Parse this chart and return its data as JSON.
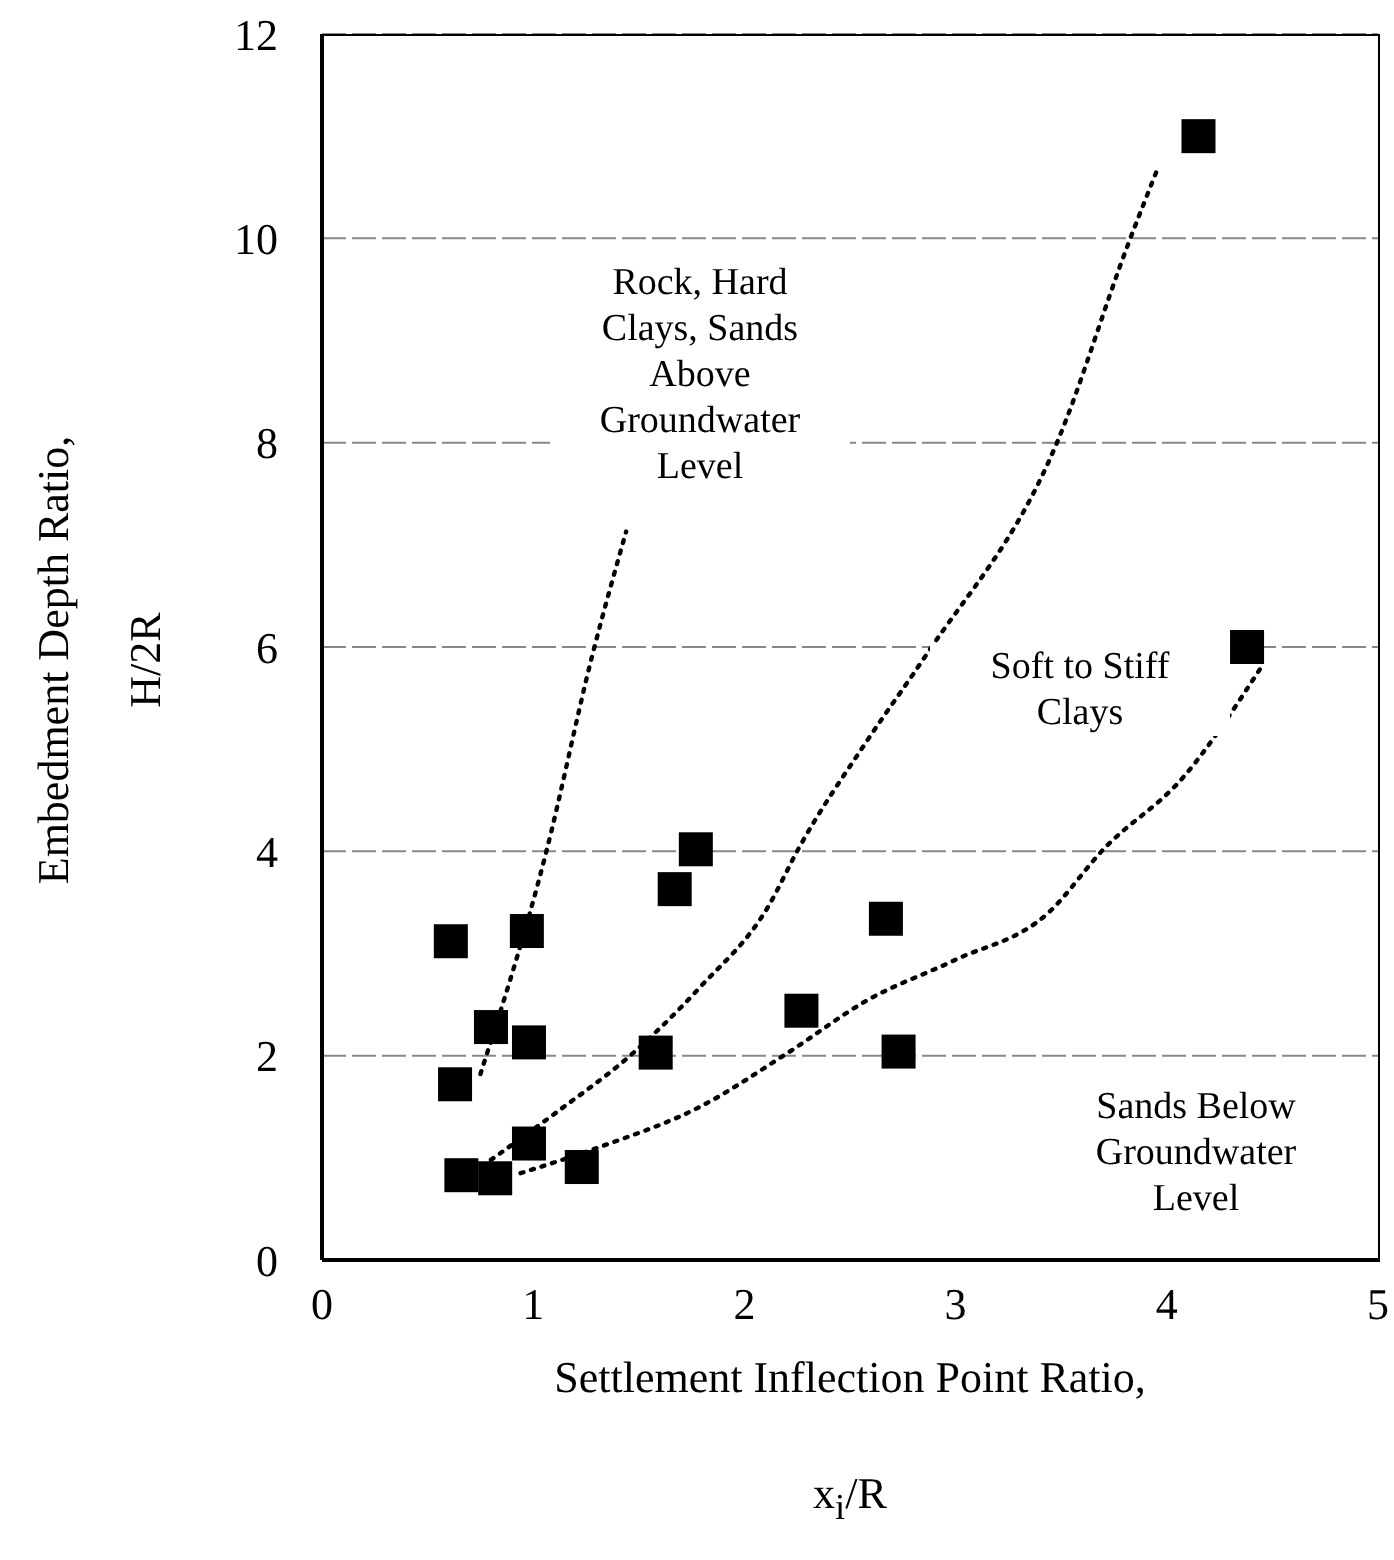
{
  "chart_data": {
    "type": "scatter",
    "xlabel": "Settlement Inflection Point Ratio, x$_{i}$/R",
    "ylabel": "Embedment Depth Ratio, H/2R",
    "xlim": [
      0,
      5
    ],
    "xticks": [
      0,
      1,
      2,
      3,
      4,
      5
    ],
    "ylim": [
      0,
      12
    ],
    "yticks": [
      0,
      2,
      4,
      6,
      8,
      10,
      12
    ],
    "grid": "y",
    "marker": "square",
    "legend": false,
    "series": [
      {
        "color": "#000000",
        "x": [
          0.61,
          0.97,
          0.8,
          0.98,
          0.63,
          0.98,
          0.66,
          0.82,
          1.23,
          1.58,
          1.67,
          1.77,
          2.27,
          2.67,
          2.73,
          4.15,
          4.38
        ],
        "values": [
          3.12,
          3.22,
          2.28,
          2.13,
          1.72,
          1.14,
          0.83,
          0.8,
          0.91,
          2.03,
          3.63,
          4.02,
          2.44,
          3.34,
          2.04,
          11.0,
          6.0
        ]
      },
      {
        "type": "line",
        "color": "#000000",
        "line_style": "dotted",
        "marker": "none",
        "x": [
          0.75,
          1.06,
          1.28,
          1.44
        ],
        "values": [
          1.82,
          3.98,
          5.92,
          7.13
        ]
      },
      {
        "type": "line",
        "color": "#000000",
        "line_style": "dotted",
        "marker": "none",
        "x": [
          0.8,
          1.1,
          1.47,
          1.79,
          2.11,
          2.26,
          2.58,
          2.86,
          3.48,
          3.82,
          3.96
        ],
        "values": [
          0.98,
          1.43,
          2.02,
          2.67,
          3.45,
          4.04,
          5.08,
          5.92,
          8.0,
          9.96,
          10.7
        ]
      },
      {
        "type": "line",
        "color": "#000000",
        "line_style": "dotted",
        "marker": "none",
        "x": [
          0.94,
          1.32,
          1.79,
          2.2,
          2.58,
          2.99,
          3.44,
          3.7,
          4.08,
          4.44
        ],
        "values": [
          0.85,
          1.11,
          1.5,
          2.02,
          2.54,
          2.93,
          3.4,
          4.02,
          4.73,
          5.78
        ]
      }
    ],
    "annotations": [
      "Rock, Hard Clays, Sands Above Groundwater Level",
      "Soft to Stiff Clays",
      "Sands Below Groundwater Level"
    ]
  }
}
